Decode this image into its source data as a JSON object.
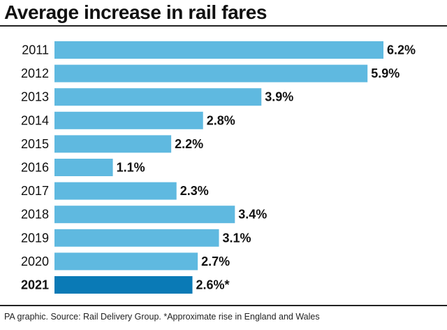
{
  "title": "Average increase in rail fares",
  "footer": "PA graphic. Source: Rail Delivery Group. *Approximate rise in England and Wales",
  "colors": {
    "bar": "#5fb9e0",
    "highlight_bar": "#0a7ab6"
  },
  "chart_data": {
    "type": "bar",
    "orientation": "horizontal",
    "title": "Average increase in rail fares",
    "xlabel": "",
    "ylabel": "",
    "categories": [
      "2011",
      "2012",
      "2013",
      "2014",
      "2015",
      "2016",
      "2017",
      "2018",
      "2019",
      "2020",
      "2021"
    ],
    "values": [
      6.2,
      5.9,
      3.9,
      2.8,
      2.2,
      1.1,
      2.3,
      3.4,
      3.1,
      2.7,
      2.6
    ],
    "value_labels": [
      "6.2%",
      "5.9%",
      "3.9%",
      "2.8%",
      "2.2%",
      "1.1%",
      "2.3%",
      "3.4%",
      "3.1%",
      "2.7%",
      "2.6%*"
    ],
    "highlight_category": "2021",
    "xlim": [
      0,
      6.2
    ],
    "grid": false,
    "legend": "none"
  }
}
